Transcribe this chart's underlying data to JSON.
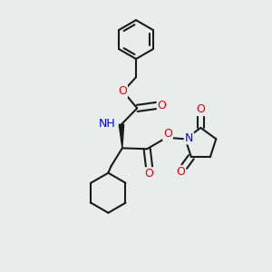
{
  "bg_color": "#e8edec",
  "bond_color": "#1a1a1a",
  "bond_width": 1.5,
  "atom_colors": {
    "O": "#e8000d",
    "N": "#0000ff",
    "H": "#3a9a8a",
    "C": "#1a1a1a"
  },
  "figsize": [
    3.0,
    3.0
  ],
  "dpi": 100
}
